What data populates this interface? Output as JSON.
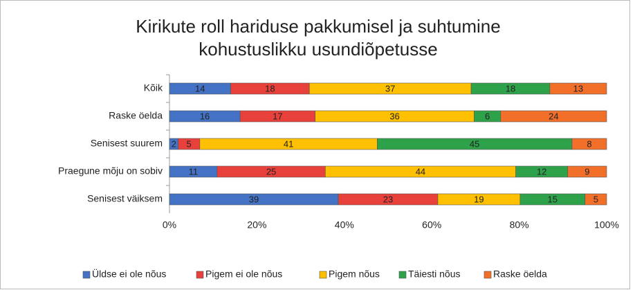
{
  "chart_data": {
    "type": "stacked_barh",
    "stacked": "percent",
    "title": [
      "Kirikute roll hariduse pakkumisel ja suhtumine",
      "kohustuslikku usundiõpetusse"
    ],
    "categories": [
      "Kõik",
      "Raske öelda",
      "Senisest suurem",
      "Praegune mõju on sobiv",
      "Senisest väiksem"
    ],
    "series": [
      {
        "name": "Üldse ei ole nõus",
        "color": "#4472c4",
        "values": [
          14,
          16,
          2,
          11,
          39
        ]
      },
      {
        "name": "Pigem ei ole nõus",
        "color": "#e8413c",
        "values": [
          18,
          17,
          5,
          25,
          23
        ]
      },
      {
        "name": "Pigem nõus",
        "color": "#ffc000",
        "values": [
          37,
          36,
          41,
          44,
          19
        ]
      },
      {
        "name": "Täiesti nõus",
        "color": "#2ea24a",
        "values": [
          18,
          6,
          45,
          12,
          15
        ]
      },
      {
        "name": "Raske öelda",
        "color": "#f26f2a",
        "values": [
          13,
          24,
          8,
          9,
          5
        ]
      }
    ],
    "xlim": [
      0,
      100
    ],
    "xticks": [
      {
        "value": 0,
        "label": "0%"
      },
      {
        "value": 20,
        "label": "20%"
      },
      {
        "value": 40,
        "label": "40%"
      },
      {
        "value": 60,
        "label": "60%"
      },
      {
        "value": 80,
        "label": "80%"
      },
      {
        "value": 100,
        "label": "100%"
      }
    ],
    "legend": "bottom"
  }
}
